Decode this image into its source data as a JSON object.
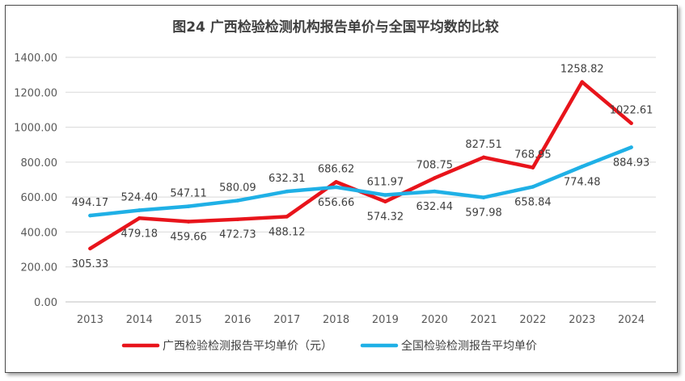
{
  "chart_data": {
    "type": "line",
    "title": "图24  广西检验检测机构报告单价与全国平均数的比较",
    "xlabel": "",
    "ylabel": "",
    "ylim": [
      0,
      1400
    ],
    "y_ticks": [
      "0.00",
      "200.00",
      "400.00",
      "600.00",
      "800.00",
      "1000.00",
      "1200.00",
      "1400.00"
    ],
    "grid": true,
    "legend_position": "bottom",
    "categories": [
      "2013",
      "2014",
      "2015",
      "2016",
      "2017",
      "2018",
      "2019",
      "2020",
      "2021",
      "2022",
      "2023",
      "2024"
    ],
    "series": [
      {
        "name": "广西检验检测报告平均单价（元）",
        "color": "#e8141b",
        "values": [
          305.33,
          479.18,
          459.66,
          472.73,
          488.12,
          686.62,
          574.32,
          708.75,
          827.51,
          768.95,
          1258.82,
          1022.61
        ],
        "labels": [
          "305.33",
          "479.18",
          "459.66",
          "472.73",
          "488.12",
          "686.62",
          "574.32",
          "708.75",
          "827.51",
          "768.95",
          "1258.82",
          "1022.61"
        ]
      },
      {
        "name": "全国检验检测报告平均单价",
        "color": "#1fb0e6",
        "values": [
          494.17,
          524.4,
          547.11,
          580.09,
          632.31,
          656.66,
          611.97,
          632.44,
          597.98,
          658.84,
          774.48,
          884.93
        ],
        "labels": [
          "494.17",
          "524.40",
          "547.11",
          "580.09",
          "632.31",
          "656.66",
          "611.97",
          "632.44",
          "597.98",
          "658.84",
          "774.48",
          "884.93"
        ]
      }
    ]
  }
}
